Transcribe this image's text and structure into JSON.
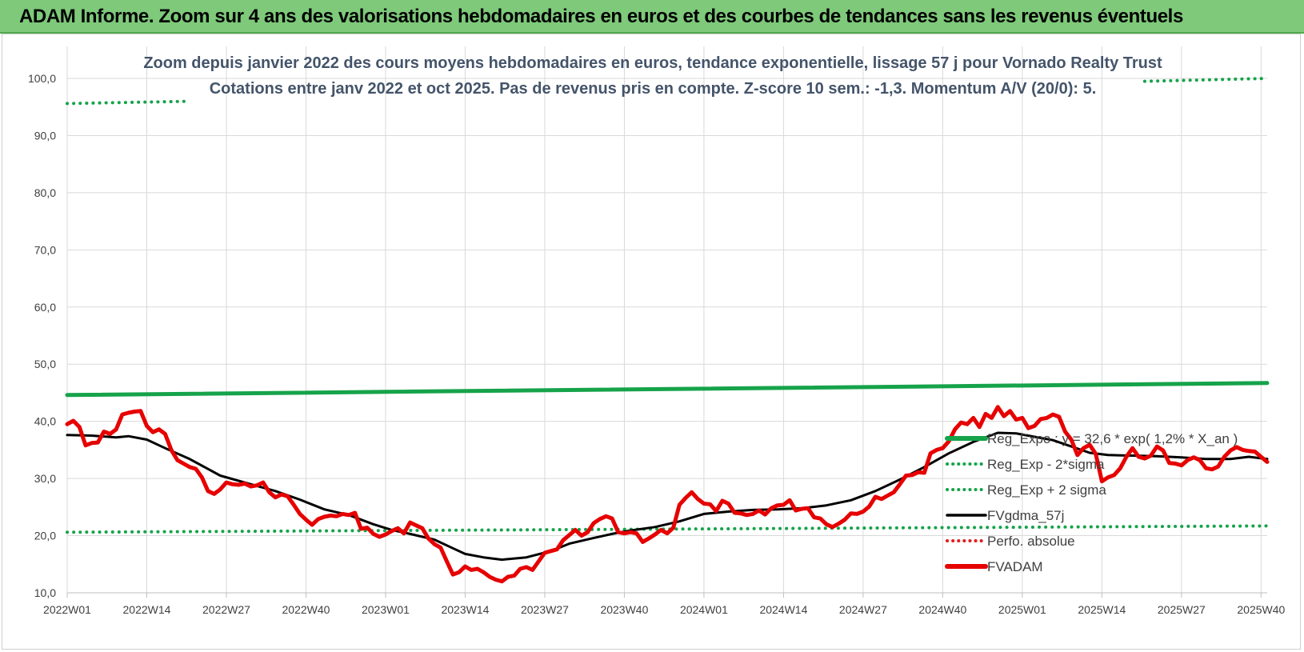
{
  "banner": {
    "title": "ADAM Informe. Zoom sur 4 ans des valorisations hebdomadaires en euros et des courbes de tendances sans les revenus éventuels",
    "background_color": "#7ec97a"
  },
  "chart_data": {
    "type": "line",
    "title": "Zoom depuis janvier 2022 des cours moyens hebdomadaires en euros, tendance exponentielle, lissage 57 j pour Vornado Realty Trust",
    "subtitle": "Cotations entre janv 2022 et oct 2025. Pas de revenus pris en compte. Z-score 10 sem.: -1,3.  Momentum A/V (20/0): 5.",
    "xlabel": "",
    "ylabel": "",
    "ylim": [
      10,
      100
    ],
    "y_ticks": [
      "10,0",
      "20,0",
      "30,0",
      "40,0",
      "50,0",
      "60,0",
      "70,0",
      "80,0",
      "90,0",
      "100,0"
    ],
    "x_count": 197,
    "x_tick_labels": [
      "2022W01",
      "2022W14",
      "2022W27",
      "2022W40",
      "2023W01",
      "2023W14",
      "2023W27",
      "2023W40",
      "2024W01",
      "2024W14",
      "2024W27",
      "2024W40",
      "2025W01",
      "2025W14",
      "2025W27",
      "2025W40"
    ],
    "x_tick_index": [
      0,
      13,
      26,
      39,
      52,
      65,
      78,
      91,
      104,
      117,
      130,
      143,
      156,
      169,
      182,
      195
    ],
    "grid": true,
    "legend_position": "right",
    "series": [
      {
        "name": "Reg_Expo : y = 32,6 * exp( 1,2% * X_an )",
        "style": "solid-thick",
        "color": "#16a34a",
        "points": [
          [
            0,
            44.6
          ],
          [
            196,
            46.7
          ]
        ]
      },
      {
        "name": "Reg_Exp - 2*sigma",
        "style": "dotted",
        "color": "#16a34a",
        "points": [
          [
            0,
            20.6
          ],
          [
            196,
            21.7
          ]
        ]
      },
      {
        "name": "Reg_Exp + 2 sigma",
        "style": "dotted",
        "color": "#16a34a",
        "points": [
          [
            0,
            95.6
          ],
          [
            20,
            96.0
          ],
          [
            176,
            99.5
          ],
          [
            196,
            100.0
          ]
        ]
      },
      {
        "name": "FVgdma_57j",
        "style": "solid",
        "color": "#000000",
        "points": [
          [
            0,
            37.6
          ],
          [
            4,
            37.5
          ],
          [
            8,
            37.2
          ],
          [
            10,
            37.4
          ],
          [
            13,
            36.8
          ],
          [
            16,
            35.3
          ],
          [
            20,
            33.4
          ],
          [
            25,
            30.5
          ],
          [
            30,
            29.0
          ],
          [
            34,
            27.8
          ],
          [
            38,
            26.3
          ],
          [
            42,
            24.6
          ],
          [
            46,
            23.6
          ],
          [
            50,
            22.0
          ],
          [
            53,
            21.0
          ],
          [
            56,
            20.3
          ],
          [
            60,
            19.3
          ],
          [
            63,
            17.8
          ],
          [
            65,
            16.8
          ],
          [
            68,
            16.2
          ],
          [
            71,
            15.8
          ],
          [
            75,
            16.2
          ],
          [
            79,
            17.3
          ],
          [
            82,
            18.6
          ],
          [
            86,
            19.6
          ],
          [
            89,
            20.3
          ],
          [
            92,
            20.9
          ],
          [
            96,
            21.5
          ],
          [
            100,
            22.5
          ],
          [
            104,
            23.8
          ],
          [
            108,
            24.2
          ],
          [
            112,
            24.5
          ],
          [
            116,
            24.6
          ],
          [
            120,
            24.8
          ],
          [
            124,
            25.3
          ],
          [
            128,
            26.2
          ],
          [
            132,
            27.8
          ],
          [
            136,
            29.8
          ],
          [
            140,
            32.0
          ],
          [
            144,
            34.4
          ],
          [
            148,
            36.4
          ],
          [
            152,
            38.0
          ],
          [
            155,
            37.9
          ],
          [
            158,
            37.3
          ],
          [
            161,
            36.7
          ],
          [
            164,
            35.6
          ],
          [
            167,
            34.5
          ],
          [
            170,
            34.1
          ],
          [
            174,
            34.0
          ],
          [
            178,
            33.9
          ],
          [
            182,
            33.7
          ],
          [
            186,
            33.4
          ],
          [
            190,
            33.4
          ],
          [
            193,
            33.8
          ],
          [
            196,
            33.4
          ]
        ]
      },
      {
        "name": "Perfo. absolue",
        "style": "dotted",
        "color": "#e11d1d",
        "points": []
      },
      {
        "name": "FVADAM",
        "style": "solid-thick",
        "color": "#e60000",
        "points": [
          [
            0,
            39.5
          ],
          [
            1,
            40.1
          ],
          [
            2,
            39.0
          ],
          [
            3,
            35.8
          ],
          [
            4,
            36.2
          ],
          [
            5,
            36.3
          ],
          [
            6,
            38.2
          ],
          [
            7,
            37.8
          ],
          [
            8,
            38.6
          ],
          [
            9,
            41.2
          ],
          [
            10,
            41.5
          ],
          [
            11,
            41.7
          ],
          [
            12,
            41.8
          ],
          [
            13,
            39.2
          ],
          [
            14,
            38.1
          ],
          [
            15,
            38.6
          ],
          [
            16,
            37.8
          ],
          [
            17,
            35.0
          ],
          [
            18,
            33.2
          ],
          [
            19,
            32.6
          ],
          [
            20,
            32.0
          ],
          [
            21,
            31.7
          ],
          [
            22,
            30.2
          ],
          [
            23,
            27.8
          ],
          [
            24,
            27.3
          ],
          [
            25,
            28.1
          ],
          [
            26,
            29.3
          ],
          [
            27,
            29.0
          ],
          [
            28,
            28.9
          ],
          [
            29,
            29.1
          ],
          [
            30,
            28.6
          ],
          [
            31,
            28.8
          ],
          [
            32,
            29.3
          ],
          [
            33,
            27.6
          ],
          [
            34,
            26.7
          ],
          [
            35,
            27.2
          ],
          [
            36,
            26.9
          ],
          [
            37,
            25.4
          ],
          [
            38,
            23.8
          ],
          [
            39,
            22.8
          ],
          [
            40,
            21.9
          ],
          [
            41,
            22.9
          ],
          [
            42,
            23.3
          ],
          [
            43,
            23.5
          ],
          [
            44,
            23.4
          ],
          [
            45,
            23.8
          ],
          [
            46,
            23.6
          ],
          [
            47,
            24.0
          ],
          [
            48,
            21.2
          ],
          [
            49,
            21.4
          ],
          [
            50,
            20.3
          ],
          [
            51,
            19.8
          ],
          [
            52,
            20.2
          ],
          [
            53,
            20.8
          ],
          [
            54,
            21.3
          ],
          [
            55,
            20.4
          ],
          [
            56,
            22.3
          ],
          [
            57,
            21.8
          ],
          [
            58,
            21.3
          ],
          [
            59,
            19.5
          ],
          [
            60,
            18.5
          ],
          [
            61,
            17.9
          ],
          [
            62,
            15.5
          ],
          [
            63,
            13.2
          ],
          [
            64,
            13.6
          ],
          [
            65,
            14.6
          ],
          [
            66,
            14.0
          ],
          [
            67,
            14.2
          ],
          [
            68,
            13.6
          ],
          [
            69,
            12.8
          ],
          [
            70,
            12.3
          ],
          [
            71,
            12.0
          ],
          [
            72,
            12.8
          ],
          [
            73,
            13.0
          ],
          [
            74,
            14.2
          ],
          [
            75,
            14.5
          ],
          [
            76,
            14.0
          ],
          [
            77,
            15.5
          ],
          [
            78,
            17.0
          ],
          [
            79,
            17.3
          ],
          [
            80,
            17.6
          ],
          [
            81,
            19.2
          ],
          [
            82,
            20.1
          ],
          [
            83,
            21.0
          ],
          [
            84,
            20.0
          ],
          [
            85,
            20.6
          ],
          [
            86,
            22.2
          ],
          [
            87,
            22.9
          ],
          [
            88,
            23.4
          ],
          [
            89,
            23.0
          ],
          [
            90,
            20.6
          ],
          [
            91,
            20.4
          ],
          [
            92,
            20.6
          ],
          [
            93,
            20.4
          ],
          [
            94,
            18.9
          ],
          [
            95,
            19.5
          ],
          [
            96,
            20.2
          ],
          [
            97,
            21.0
          ],
          [
            98,
            20.4
          ],
          [
            99,
            21.4
          ],
          [
            100,
            25.4
          ],
          [
            101,
            26.6
          ],
          [
            102,
            27.6
          ],
          [
            103,
            26.4
          ],
          [
            104,
            25.6
          ],
          [
            105,
            25.5
          ],
          [
            106,
            24.3
          ],
          [
            107,
            26.1
          ],
          [
            108,
            25.6
          ],
          [
            109,
            24.0
          ],
          [
            110,
            23.9
          ],
          [
            111,
            23.6
          ],
          [
            112,
            23.8
          ],
          [
            113,
            24.4
          ],
          [
            114,
            23.7
          ],
          [
            115,
            24.8
          ],
          [
            116,
            25.3
          ],
          [
            117,
            25.4
          ],
          [
            118,
            26.2
          ],
          [
            119,
            24.4
          ],
          [
            120,
            24.7
          ],
          [
            121,
            24.8
          ],
          [
            122,
            23.2
          ],
          [
            123,
            23.0
          ],
          [
            124,
            22.0
          ],
          [
            125,
            21.5
          ],
          [
            126,
            22.1
          ],
          [
            127,
            22.8
          ],
          [
            128,
            23.9
          ],
          [
            129,
            23.8
          ],
          [
            130,
            24.2
          ],
          [
            131,
            25.1
          ],
          [
            132,
            26.8
          ],
          [
            133,
            26.4
          ],
          [
            134,
            27.0
          ],
          [
            135,
            27.6
          ],
          [
            136,
            29.0
          ],
          [
            137,
            30.5
          ],
          [
            138,
            30.6
          ],
          [
            139,
            31.1
          ],
          [
            140,
            31.0
          ],
          [
            141,
            34.4
          ],
          [
            142,
            35.0
          ],
          [
            143,
            35.3
          ],
          [
            144,
            36.5
          ],
          [
            145,
            38.6
          ],
          [
            146,
            39.8
          ],
          [
            147,
            39.5
          ],
          [
            148,
            40.6
          ],
          [
            149,
            39.0
          ],
          [
            150,
            41.3
          ],
          [
            151,
            40.6
          ],
          [
            152,
            42.5
          ],
          [
            153,
            40.9
          ],
          [
            154,
            41.8
          ],
          [
            155,
            40.3
          ],
          [
            156,
            40.6
          ],
          [
            157,
            38.8
          ],
          [
            158,
            39.2
          ],
          [
            159,
            40.4
          ],
          [
            160,
            40.6
          ],
          [
            161,
            41.2
          ],
          [
            162,
            40.8
          ],
          [
            163,
            38.2
          ],
          [
            164,
            36.8
          ],
          [
            165,
            34.1
          ],
          [
            166,
            35.3
          ],
          [
            167,
            35.9
          ],
          [
            168,
            34.3
          ],
          [
            169,
            29.5
          ],
          [
            170,
            30.2
          ],
          [
            171,
            30.6
          ],
          [
            172,
            31.8
          ],
          [
            173,
            33.8
          ],
          [
            174,
            35.3
          ],
          [
            175,
            33.8
          ],
          [
            176,
            33.5
          ],
          [
            177,
            34.0
          ],
          [
            178,
            35.6
          ],
          [
            179,
            34.9
          ],
          [
            180,
            32.7
          ],
          [
            181,
            32.6
          ],
          [
            182,
            32.3
          ],
          [
            183,
            33.2
          ],
          [
            184,
            33.7
          ],
          [
            185,
            33.2
          ],
          [
            186,
            31.8
          ],
          [
            187,
            31.6
          ],
          [
            188,
            32.1
          ],
          [
            189,
            33.8
          ],
          [
            190,
            34.9
          ],
          [
            191,
            35.5
          ],
          [
            192,
            35.0
          ],
          [
            193,
            34.8
          ],
          [
            194,
            34.7
          ],
          [
            195,
            33.8
          ],
          [
            196,
            32.9
          ]
        ]
      }
    ]
  }
}
